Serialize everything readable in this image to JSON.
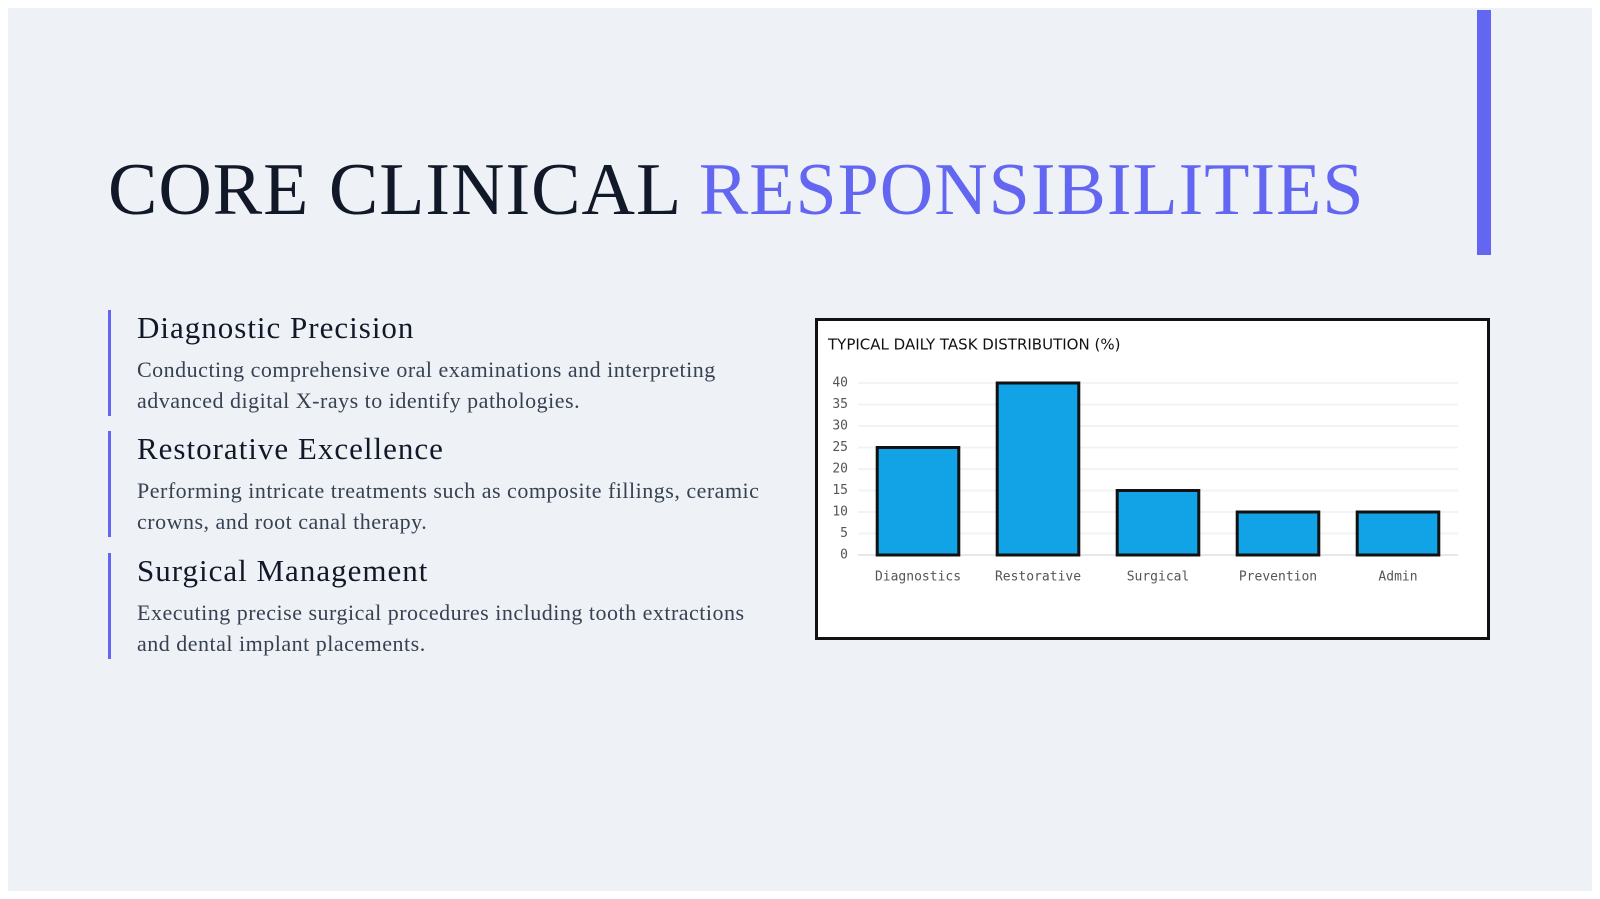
{
  "header": {
    "title_main": "CORE CLINICAL",
    "title_accent": "RESPONSIBILITIES"
  },
  "items": [
    {
      "heading": "Diagnostic Precision",
      "text": "Conducting comprehensive oral examinations and interpreting advanced digital X-rays to identify pathologies."
    },
    {
      "heading": "Restorative Excellence",
      "text": "Performing intricate treatments such as composite fillings, ceramic crowns, and root canal therapy."
    },
    {
      "heading": "Surgical Management",
      "text": "Executing precise surgical procedures including tooth extractions and dental implant placements."
    }
  ],
  "chart_data": {
    "type": "bar",
    "title": "TYPICAL DAILY TASK DISTRIBUTION (%)",
    "categories": [
      "Diagnostics",
      "Restorative",
      "Surgical",
      "Prevention",
      "Admin"
    ],
    "values": [
      25,
      40,
      15,
      10,
      10
    ],
    "color": "#12a3e6",
    "ylim": [
      0,
      40
    ],
    "yticks": [
      0,
      5,
      10,
      15,
      20,
      25,
      30,
      35,
      40
    ],
    "grid": true
  }
}
